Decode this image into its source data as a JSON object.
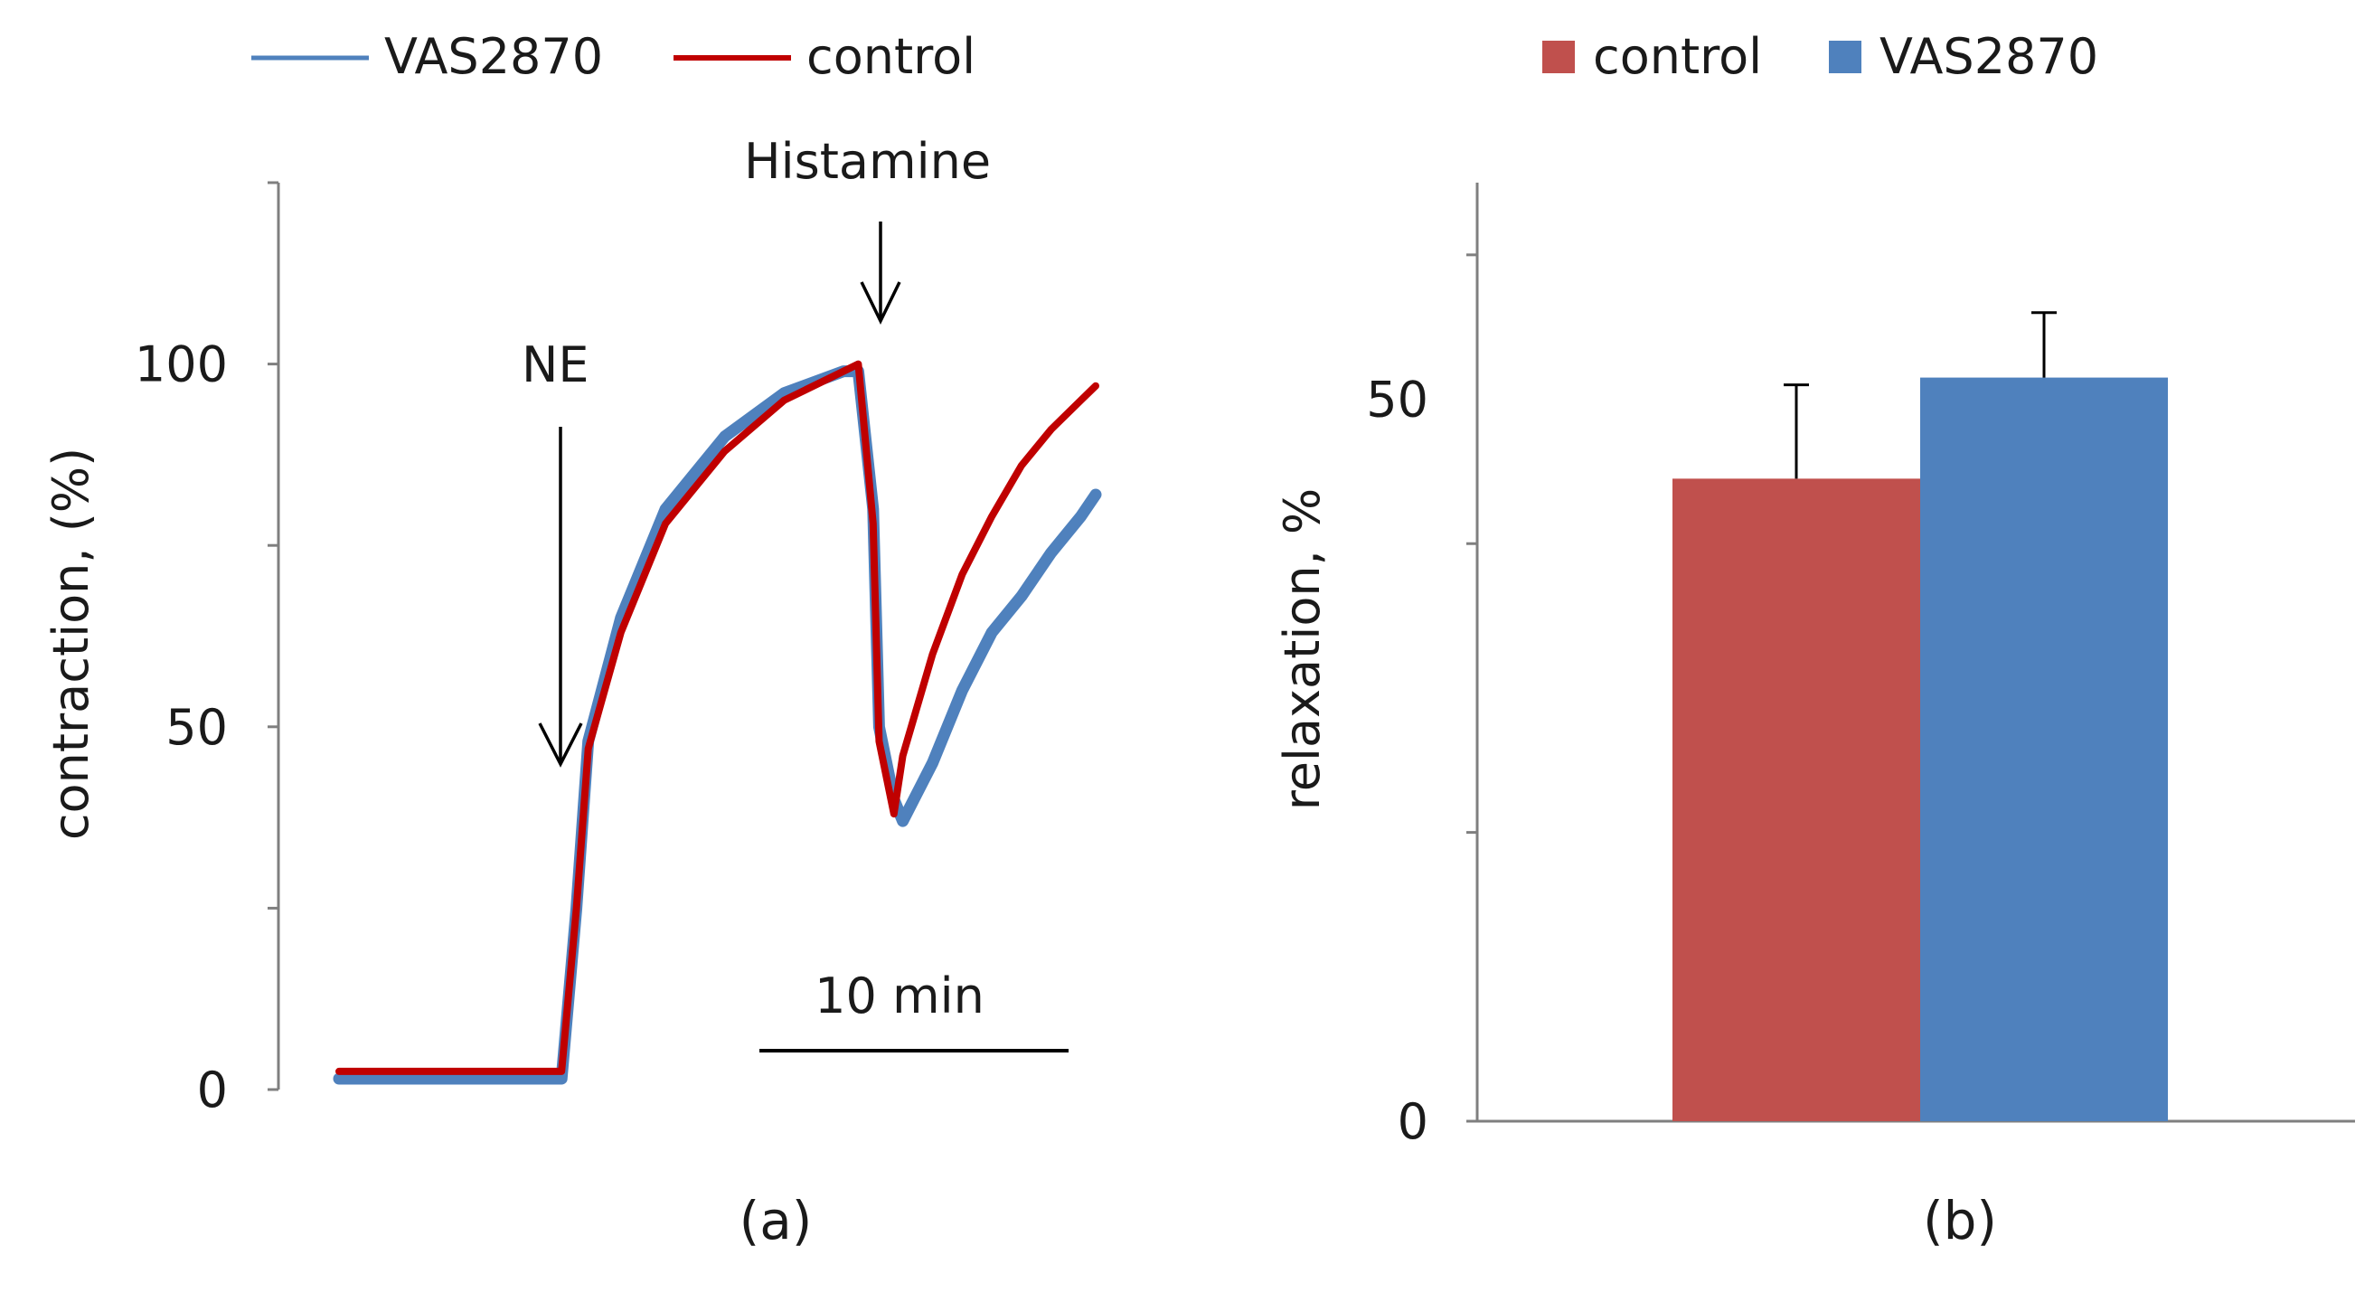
{
  "chart_data": [
    {
      "type": "line",
      "panel_label": "(a)",
      "ylabel": "contraction, (%)",
      "xlabel": "",
      "ylim": [
        0,
        125
      ],
      "yticks": [
        0,
        50,
        100
      ],
      "legend": {
        "position": "top",
        "entries": [
          "VAS2870",
          "control"
        ]
      },
      "annotations": [
        "NE",
        "Histamine"
      ],
      "scale_bar": "10 min",
      "x_unit": "min",
      "series": [
        {
          "name": "VAS2870",
          "color": "#4f81bd",
          "x": [
            0,
            3,
            6,
            7.5,
            8.0,
            8.4,
            9.5,
            11,
            13,
            15,
            17,
            17.5,
            18.0,
            18.2,
            18.7,
            19,
            20,
            21,
            22,
            23,
            24,
            25,
            25.5
          ],
          "y": [
            1.5,
            1.5,
            1.5,
            1.5,
            25,
            48,
            65,
            80,
            90,
            96,
            99,
            99,
            80,
            50,
            40,
            37,
            45,
            55,
            63,
            68,
            74,
            79,
            82
          ]
        },
        {
          "name": "control",
          "color": "#c00000",
          "x": [
            0,
            3,
            6,
            7.5,
            8.0,
            8.4,
            9.5,
            11,
            13,
            15,
            17,
            17.5,
            18.0,
            18.2,
            18.7,
            19,
            20,
            21,
            22,
            23,
            24,
            25,
            25.5
          ],
          "y": [
            2.5,
            2.5,
            2.5,
            2.5,
            25,
            47,
            63,
            78,
            88,
            95,
            99,
            100,
            78,
            48,
            38,
            46,
            60,
            71,
            79,
            86,
            91,
            95,
            97
          ]
        }
      ]
    },
    {
      "type": "bar",
      "panel_label": "(b)",
      "ylabel": "relaxation, %",
      "xlabel": "",
      "ylim": [
        0,
        65
      ],
      "yticks": [
        0,
        50
      ],
      "legend": {
        "position": "top",
        "entries": [
          "control",
          "VAS2870"
        ]
      },
      "categories": [
        ""
      ],
      "series": [
        {
          "name": "control",
          "color": "#c0504d",
          "values": [
            44.5
          ],
          "error": [
            6.5
          ]
        },
        {
          "name": "VAS2870",
          "color": "#4f81bd",
          "values": [
            51.5
          ],
          "error": [
            4.5
          ]
        }
      ]
    }
  ]
}
